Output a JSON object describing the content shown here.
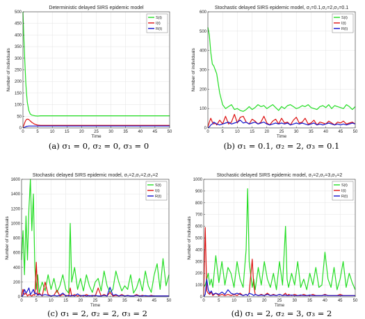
{
  "colors": {
    "S": "#22dd22",
    "I": "#dd1111",
    "R": "#1111cc"
  },
  "chart_data": [
    {
      "type": "line",
      "title": "Deterministic delayed SIRS epidemic model",
      "caption": "(a) σ₁ = 0, σ₂ = 0, σ₃ = 0",
      "xlabel": "Time",
      "ylabel": "Number of individuals",
      "xlim": [
        0,
        50
      ],
      "ylim": [
        0,
        500
      ],
      "xticks": [
        0,
        5,
        10,
        15,
        20,
        25,
        30,
        35,
        40,
        45,
        50
      ],
      "yticks": [
        0,
        50,
        100,
        150,
        200,
        250,
        300,
        350,
        400,
        450,
        500
      ],
      "grid": true,
      "legend": "top-right",
      "legend_labels": [
        "S(t)",
        "I(t)",
        "R(t)"
      ],
      "x": [
        0,
        0.2,
        0.4,
        0.6,
        0.8,
        1,
        1.2,
        1.5,
        2,
        2.5,
        3,
        4,
        5,
        6,
        8,
        10,
        15,
        20,
        30,
        40,
        50
      ],
      "series": [
        {
          "name": "S(t)",
          "values": [
            500,
            430,
            360,
            300,
            240,
            190,
            150,
            110,
            75,
            60,
            55,
            52,
            51,
            52,
            52,
            52,
            52,
            52,
            52,
            52,
            52
          ]
        },
        {
          "name": "I(t)",
          "values": [
            2,
            8,
            15,
            22,
            28,
            33,
            36,
            38,
            36,
            30,
            24,
            16,
            12,
            11,
            11,
            11,
            11,
            11,
            11,
            11,
            11
          ]
        },
        {
          "name": "R(t)",
          "values": [
            0,
            1,
            2,
            3,
            4,
            5,
            6,
            7,
            8,
            8,
            8,
            8,
            8,
            8,
            8,
            8,
            8,
            8,
            8,
            8,
            8
          ]
        }
      ]
    },
    {
      "type": "line",
      "title": "Stochastic delayed SIRS epidemic model, σ₁=0.1,σ₂=2,σ₃=0.1",
      "caption": "(b) σ₁ = 0.1, σ₂ = 2, σ₃ = 0.1",
      "xlabel": "Time",
      "ylabel": "Number of individuals",
      "xlim": [
        0,
        50
      ],
      "ylim": [
        0,
        600
      ],
      "xticks": [
        0,
        5,
        10,
        15,
        20,
        25,
        30,
        35,
        40,
        45,
        50
      ],
      "yticks": [
        0,
        100,
        200,
        300,
        400,
        500,
        600
      ],
      "grid": true,
      "legend": "top-right",
      "legend_labels": [
        "S(t)",
        "I(t)",
        "R(t)"
      ],
      "x": [
        0,
        0.5,
        1,
        1.5,
        2,
        2.5,
        3,
        4,
        5,
        6,
        7,
        8,
        9,
        10,
        11,
        12,
        13,
        14,
        15,
        16,
        17,
        18,
        19,
        20,
        21,
        22,
        23,
        24,
        25,
        26,
        27,
        28,
        29,
        30,
        31,
        32,
        33,
        34,
        35,
        36,
        37,
        38,
        39,
        40,
        41,
        42,
        43,
        44,
        45,
        46,
        47,
        48,
        49,
        50
      ],
      "series": [
        {
          "name": "S(t)",
          "values": [
            520,
            480,
            390,
            330,
            320,
            300,
            280,
            180,
            120,
            100,
            110,
            120,
            95,
            100,
            90,
            85,
            95,
            110,
            95,
            105,
            120,
            110,
            115,
            100,
            110,
            120,
            105,
            90,
            110,
            100,
            115,
            120,
            110,
            100,
            105,
            115,
            110,
            120,
            105,
            100,
            95,
            110,
            115,
            105,
            120,
            100,
            115,
            110,
            105,
            100,
            120,
            110,
            95,
            110
          ]
        },
        {
          "name": "I(t)",
          "values": [
            5,
            30,
            50,
            30,
            20,
            25,
            15,
            40,
            20,
            60,
            20,
            30,
            70,
            25,
            55,
            60,
            30,
            20,
            45,
            35,
            20,
            30,
            60,
            25,
            15,
            35,
            45,
            20,
            50,
            25,
            30,
            15,
            40,
            55,
            25,
            30,
            50,
            20,
            25,
            40,
            15,
            30,
            25,
            20,
            35,
            25,
            15,
            30,
            25,
            35,
            20,
            25,
            30,
            20
          ]
        },
        {
          "name": "R(t)",
          "values": [
            0,
            5,
            15,
            20,
            30,
            25,
            20,
            15,
            20,
            25,
            30,
            20,
            25,
            30,
            40,
            25,
            30,
            20,
            25,
            30,
            20,
            25,
            30,
            20,
            15,
            20,
            25,
            20,
            25,
            20,
            25,
            15,
            20,
            25,
            20,
            25,
            20,
            15,
            20,
            25,
            15,
            20,
            15,
            20,
            25,
            20,
            15,
            20,
            15,
            20,
            15,
            20,
            25,
            20
          ]
        }
      ]
    },
    {
      "type": "line",
      "title": "Stochastic delayed SIRS epidemic model, σ₁=2,σ₂=2,σ₃=2",
      "caption": "(c) σ₁ = 2, σ₂ = 2, σ₃ = 2",
      "xlabel": "Time",
      "ylabel": "Number of individuals",
      "xlim": [
        0,
        50
      ],
      "ylim": [
        0,
        1600
      ],
      "xticks": [
        0,
        5,
        10,
        15,
        20,
        25,
        30,
        35,
        40,
        45,
        50
      ],
      "yticks": [
        0,
        200,
        400,
        600,
        800,
        1000,
        1200,
        1400,
        1600
      ],
      "grid": true,
      "legend": "top-right",
      "legend_labels": [
        "S(t)",
        "I(t)",
        "R(t)"
      ],
      "x": [
        0,
        0.5,
        1,
        1.5,
        2,
        2.5,
        3,
        3.5,
        4,
        4.5,
        5,
        5.5,
        6,
        7,
        8,
        9,
        10,
        11,
        12,
        13,
        14,
        15,
        16,
        16.5,
        17,
        18,
        19,
        20,
        21,
        22,
        23,
        24,
        25,
        26,
        27,
        28,
        29,
        30,
        31,
        32,
        33,
        34,
        35,
        36,
        37,
        38,
        39,
        40,
        41,
        42,
        43,
        44,
        45,
        46,
        47,
        48,
        49,
        50
      ],
      "series": [
        {
          "name": "S(t)",
          "values": [
            500,
            900,
            300,
            1100,
            500,
            1200,
            1600,
            900,
            1400,
            400,
            100,
            300,
            50,
            200,
            80,
            300,
            100,
            250,
            60,
            150,
            300,
            100,
            50,
            1000,
            200,
            400,
            100,
            250,
            80,
            300,
            150,
            60,
            200,
            250,
            80,
            350,
            150,
            60,
            100,
            350,
            200,
            80,
            150,
            100,
            300,
            50,
            120,
            250,
            80,
            350,
            150,
            60,
            300,
            450,
            100,
            520,
            150,
            300
          ]
        },
        {
          "name": "I(t)",
          "values": [
            0,
            100,
            30,
            50,
            10,
            30,
            20,
            10,
            30,
            20,
            470,
            20,
            50,
            10,
            200,
            30,
            10,
            20,
            90,
            10,
            30,
            20,
            10,
            120,
            10,
            30,
            10,
            20,
            10,
            30,
            10,
            20,
            10,
            120,
            10,
            30,
            10,
            60,
            10,
            20,
            10,
            30,
            10,
            20,
            10,
            10,
            30,
            10,
            20,
            10,
            10,
            20,
            10,
            10,
            10,
            10,
            10,
            10
          ]
        },
        {
          "name": "R(t)",
          "values": [
            0,
            20,
            100,
            50,
            80,
            120,
            30,
            60,
            100,
            40,
            50,
            20,
            30,
            20,
            30,
            20,
            10,
            20,
            10,
            20,
            50,
            10,
            20,
            10,
            20,
            10,
            40,
            10,
            20,
            10,
            15,
            10,
            20,
            10,
            10,
            20,
            10,
            130,
            20,
            30,
            10,
            20,
            10,
            15,
            10,
            10,
            20,
            10,
            10,
            15,
            10,
            10,
            10,
            10,
            10,
            10,
            10,
            10
          ]
        }
      ]
    },
    {
      "type": "line",
      "title": "Stochastic delayed SIRS epidemic model, σ₁=2,σ₂=3,σ₃=2",
      "caption": "(d) σ₁ = 2, σ₂ = 3, σ₃ = 2",
      "xlabel": "Time",
      "ylabel": "Number of individuals",
      "xlim": [
        0,
        50
      ],
      "ylim": [
        0,
        1000
      ],
      "xticks": [
        0,
        5,
        10,
        15,
        20,
        25,
        30,
        35,
        40,
        45,
        50
      ],
      "yticks": [
        0,
        100,
        200,
        300,
        400,
        500,
        600,
        700,
        800,
        900,
        1000
      ],
      "grid": true,
      "legend": "top-right",
      "legend_labels": [
        "S(t)",
        "I(t)",
        "R(t)"
      ],
      "x": [
        0,
        0.5,
        1,
        1.5,
        2,
        2.5,
        3,
        4,
        5,
        6,
        7,
        8,
        9,
        10,
        11,
        12,
        13,
        14,
        14.5,
        15,
        16,
        16.5,
        17,
        18,
        19,
        20,
        21,
        22,
        23,
        24,
        25,
        26,
        27,
        27.5,
        28,
        29,
        30,
        31,
        32,
        33,
        34,
        35,
        36,
        37,
        38,
        39,
        40,
        41,
        42,
        43,
        44,
        45,
        46,
        47,
        48,
        49,
        50
      ],
      "series": [
        {
          "name": "S(t)",
          "values": [
            80,
            100,
            150,
            200,
            100,
            150,
            80,
            350,
            120,
            300,
            100,
            250,
            200,
            80,
            300,
            150,
            80,
            400,
            920,
            300,
            80,
            150,
            60,
            250,
            100,
            300,
            150,
            80,
            200,
            60,
            300,
            100,
            600,
            150,
            80,
            200,
            100,
            300,
            80,
            150,
            60,
            200,
            100,
            250,
            80,
            100,
            380,
            150,
            80,
            250,
            60,
            150,
            300,
            80,
            200,
            120,
            60
          ]
        },
        {
          "name": "I(t)",
          "values": [
            10,
            590,
            50,
            30,
            20,
            40,
            10,
            30,
            10,
            20,
            10,
            20,
            10,
            20,
            10,
            30,
            10,
            20,
            10,
            30,
            320,
            100,
            20,
            10,
            20,
            10,
            30,
            10,
            20,
            10,
            20,
            10,
            30,
            10,
            20,
            10,
            20,
            10,
            10,
            20,
            10,
            10,
            20,
            10,
            10,
            10,
            20,
            10,
            10,
            10,
            10,
            20,
            10,
            10,
            10,
            10,
            10
          ]
        },
        {
          "name": "R(t)",
          "values": [
            0,
            20,
            150,
            60,
            30,
            50,
            20,
            30,
            20,
            40,
            20,
            60,
            30,
            20,
            30,
            20,
            10,
            20,
            10,
            30,
            20,
            10,
            20,
            10,
            15,
            10,
            20,
            10,
            15,
            10,
            20,
            10,
            15,
            10,
            10,
            15,
            10,
            10,
            15,
            10,
            10,
            15,
            10,
            10,
            10,
            10,
            15,
            10,
            10,
            10,
            10,
            10,
            10,
            10,
            10,
            10,
            10
          ]
        }
      ]
    }
  ]
}
